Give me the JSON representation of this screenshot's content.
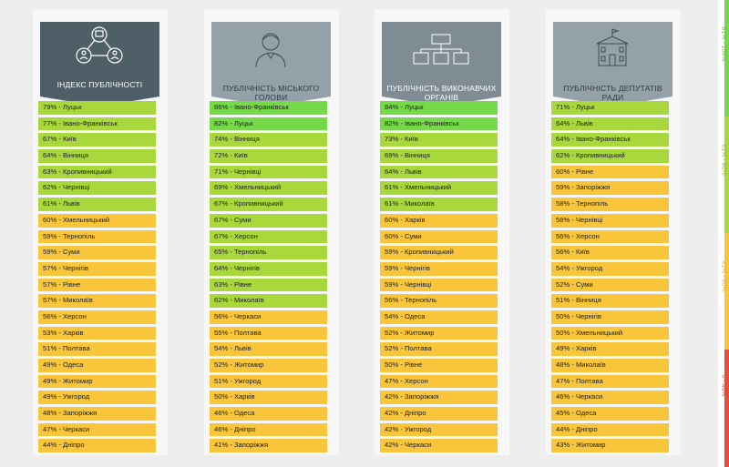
{
  "colors": {
    "header_dark": "#4f5f68",
    "header_mid": "#7f8c94",
    "header_light": "#95a1a8",
    "bright_green": "#76d94a",
    "green": "#a8d83c",
    "yellow": "#f9c63b",
    "red": "#e84e3b"
  },
  "legend": [
    {
      "label": "81% - 100%",
      "color": "#76d94a",
      "text_color": "#6ab53a"
    },
    {
      "label": "61% - 80%",
      "color": "#a8d83c",
      "text_color": "#8cbc2c"
    },
    {
      "label": "41% - 60%",
      "color": "#f9c63b",
      "text_color": "#e6aa1e"
    },
    {
      "label": "0 - 40%",
      "color": "#e84e3b",
      "text_color": "#e04634"
    }
  ],
  "chart_data": [
    {
      "type": "table",
      "title": "Індекс публічності",
      "icon": "network-people-icon",
      "rows": [
        {
          "value": 79,
          "city": "Луцьк"
        },
        {
          "value": 77,
          "city": "Івано-Франківськ"
        },
        {
          "value": 67,
          "city": "Київ"
        },
        {
          "value": 64,
          "city": "Вінниця"
        },
        {
          "value": 63,
          "city": "Кропивницький"
        },
        {
          "value": 62,
          "city": "Чернівці"
        },
        {
          "value": 61,
          "city": "Львів"
        },
        {
          "value": 60,
          "city": "Хмельницький"
        },
        {
          "value": 59,
          "city": "Тернопіль"
        },
        {
          "value": 59,
          "city": "Суми"
        },
        {
          "value": 57,
          "city": "Чернігів"
        },
        {
          "value": 57,
          "city": "Рівне"
        },
        {
          "value": 57,
          "city": "Миколаїв"
        },
        {
          "value": 56,
          "city": "Херсон"
        },
        {
          "value": 53,
          "city": "Харків"
        },
        {
          "value": 51,
          "city": "Полтава"
        },
        {
          "value": 49,
          "city": "Одеса"
        },
        {
          "value": 49,
          "city": "Житомир"
        },
        {
          "value": 49,
          "city": "Ужгород"
        },
        {
          "value": 48,
          "city": "Запоріжжя"
        },
        {
          "value": 47,
          "city": "Черкаси"
        },
        {
          "value": 44,
          "city": "Дніпро"
        }
      ]
    },
    {
      "type": "table",
      "title": "Публічність міського голови",
      "icon": "mayor-person-icon",
      "rows": [
        {
          "value": 86,
          "city": "Івано-Франківськ"
        },
        {
          "value": 82,
          "city": "Луцьк"
        },
        {
          "value": 74,
          "city": "Вінниця"
        },
        {
          "value": 72,
          "city": "Київ"
        },
        {
          "value": 71,
          "city": "Чернівці"
        },
        {
          "value": 69,
          "city": "Хмельницький"
        },
        {
          "value": 67,
          "city": "Кропивницький"
        },
        {
          "value": 67,
          "city": "Суми"
        },
        {
          "value": 67,
          "city": "Херсон"
        },
        {
          "value": 65,
          "city": "Тернопіль"
        },
        {
          "value": 64,
          "city": "Чернігів"
        },
        {
          "value": 63,
          "city": "Рівне"
        },
        {
          "value": 62,
          "city": "Миколаїв"
        },
        {
          "value": 56,
          "city": "Черкаси"
        },
        {
          "value": 55,
          "city": "Полтава"
        },
        {
          "value": 54,
          "city": "Львів"
        },
        {
          "value": 52,
          "city": "Житомир"
        },
        {
          "value": 51,
          "city": "Ужгород"
        },
        {
          "value": 50,
          "city": "Харків"
        },
        {
          "value": 46,
          "city": "Одеса"
        },
        {
          "value": 46,
          "city": "Дніпро"
        },
        {
          "value": 41,
          "city": "Запоріжжя"
        }
      ]
    },
    {
      "type": "table",
      "title": "Публічність виконавчих органів",
      "icon": "org-chart-icon",
      "rows": [
        {
          "value": 84,
          "city": "Луцьк"
        },
        {
          "value": 82,
          "city": "Івано-Франківськ"
        },
        {
          "value": 73,
          "city": "Київ"
        },
        {
          "value": 69,
          "city": "Вінниця"
        },
        {
          "value": 64,
          "city": "Львів"
        },
        {
          "value": 61,
          "city": "Хмельницький"
        },
        {
          "value": 61,
          "city": "Миколаїв"
        },
        {
          "value": 60,
          "city": "Харків"
        },
        {
          "value": 60,
          "city": "Суми"
        },
        {
          "value": 59,
          "city": "Кропивницький"
        },
        {
          "value": 59,
          "city": "Чернігів"
        },
        {
          "value": 59,
          "city": "Чернівці"
        },
        {
          "value": 56,
          "city": "Тернопіль"
        },
        {
          "value": 54,
          "city": "Одеса"
        },
        {
          "value": 52,
          "city": "Житомир"
        },
        {
          "value": 52,
          "city": "Полтава"
        },
        {
          "value": 50,
          "city": "Рівне"
        },
        {
          "value": 47,
          "city": "Херсон"
        },
        {
          "value": 42,
          "city": "Запоріжжя"
        },
        {
          "value": 42,
          "city": "Дніпро"
        },
        {
          "value": 42,
          "city": "Ужгород"
        },
        {
          "value": 42,
          "city": "Черкаси"
        }
      ]
    },
    {
      "type": "table",
      "title": "Публічність депутатів ради",
      "icon": "council-building-icon",
      "rows": [
        {
          "value": 71,
          "city": "Луцьк"
        },
        {
          "value": 64,
          "city": "Львів"
        },
        {
          "value": 64,
          "city": "Івано-Франківськ"
        },
        {
          "value": 62,
          "city": "Кропивницький"
        },
        {
          "value": 60,
          "city": "Рівне"
        },
        {
          "value": 59,
          "city": "Запоріжжя"
        },
        {
          "value": 58,
          "city": "Тернопіль"
        },
        {
          "value": 58,
          "city": "Чернівці"
        },
        {
          "value": 56,
          "city": "Херсон"
        },
        {
          "value": 56,
          "city": "Київ"
        },
        {
          "value": 54,
          "city": "Ужгород"
        },
        {
          "value": 52,
          "city": "Суми"
        },
        {
          "value": 51,
          "city": "Вінниця"
        },
        {
          "value": 50,
          "city": "Чернігів"
        },
        {
          "value": 50,
          "city": "Хмельницький"
        },
        {
          "value": 49,
          "city": "Харків"
        },
        {
          "value": 48,
          "city": "Миколаїв"
        },
        {
          "value": 47,
          "city": "Полтава"
        },
        {
          "value": 46,
          "city": "Черкаси"
        },
        {
          "value": 45,
          "city": "Одеса"
        },
        {
          "value": 44,
          "city": "Дніпро"
        },
        {
          "value": 43,
          "city": "Житомир"
        }
      ]
    }
  ]
}
